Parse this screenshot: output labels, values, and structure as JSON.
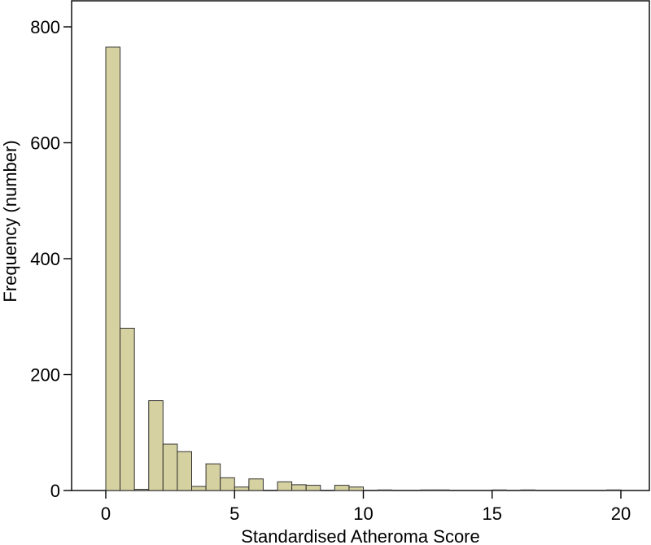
{
  "chart_data": {
    "type": "bar",
    "subtype": "histogram",
    "xlabel": "Standardised Atheroma Score",
    "ylabel": "Frequency (number)",
    "xlim": [
      -1.5,
      20.5
    ],
    "ylim": [
      0,
      840
    ],
    "x_ticks": [
      0,
      5,
      10,
      15,
      20
    ],
    "y_ticks": [
      0,
      200,
      400,
      600,
      800
    ],
    "x_tick_labels": [
      "0",
      "5",
      "10",
      "15",
      "20"
    ],
    "y_tick_labels": [
      "0",
      "200",
      "400",
      "600",
      "800"
    ],
    "grid": false,
    "legend": "none",
    "bar_color": "#d6d1a0",
    "bar_edge_color": "#333333",
    "bin_width": 0.5556,
    "bin_start": 0,
    "values": [
      765,
      280,
      2,
      155,
      80,
      67,
      7,
      46,
      22,
      6,
      20,
      0,
      15,
      10,
      9,
      0,
      9,
      6,
      0,
      1,
      0,
      0,
      1,
      1,
      0,
      0,
      0,
      1,
      0,
      1,
      0,
      0,
      0,
      0,
      0,
      1
    ]
  }
}
